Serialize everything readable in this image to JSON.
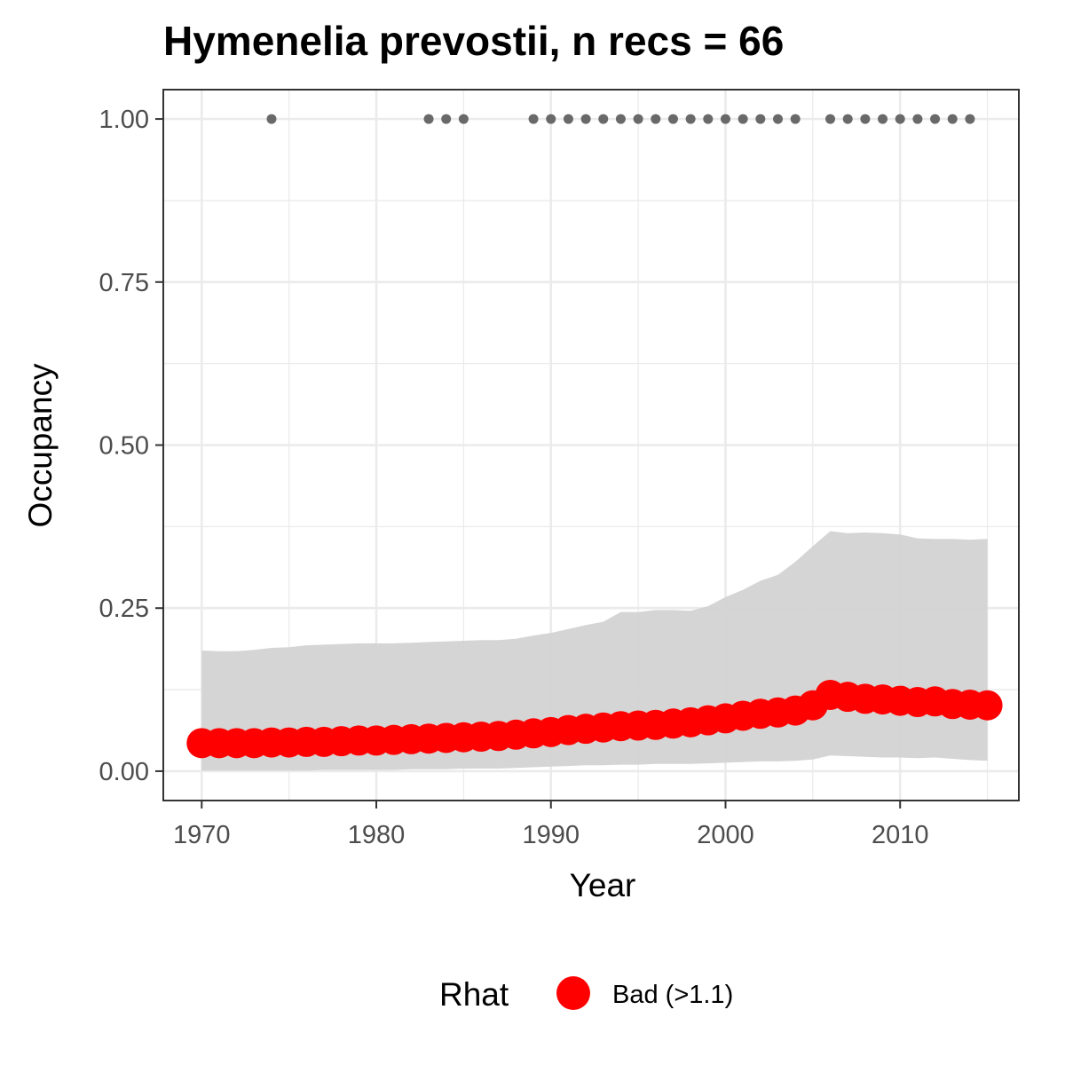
{
  "chart_data": {
    "type": "line",
    "title": "Hymenelia prevostii, n recs = 66",
    "xlabel": "Year",
    "ylabel": "Occupancy",
    "xlim": [
      1967.8,
      2016.8
    ],
    "ylim": [
      -0.045,
      1.045
    ],
    "x_ticks": [
      1970,
      1980,
      1990,
      2000,
      2010
    ],
    "x_tick_labels": [
      "1970",
      "1980",
      "1990",
      "2000",
      "2010"
    ],
    "y_ticks": [
      0,
      0.25,
      0.5,
      0.75,
      1
    ],
    "y_tick_labels": [
      "0.00",
      "0.25",
      "0.50",
      "0.75",
      "1.00"
    ],
    "grid": true,
    "colors": {
      "points": "#ff0000",
      "ribbon": "#d3d3d3",
      "records": "#696969",
      "grid": "#ebebeb",
      "border": "#333333"
    },
    "series": [
      {
        "type": "points",
        "x": [
          1970,
          1971,
          1972,
          1973,
          1974,
          1975,
          1976,
          1977,
          1978,
          1979,
          1980,
          1981,
          1982,
          1983,
          1984,
          1985,
          1986,
          1987,
          1988,
          1989,
          1990,
          1991,
          1992,
          1993,
          1994,
          1995,
          1996,
          1997,
          1998,
          1999,
          2000,
          2001,
          2002,
          2003,
          2004,
          2005,
          2006,
          2007,
          2008,
          2009,
          2010,
          2011,
          2012,
          2013,
          2014,
          2015
        ],
        "y": [
          0.043,
          0.043,
          0.043,
          0.043,
          0.044,
          0.044,
          0.045,
          0.045,
          0.046,
          0.047,
          0.047,
          0.048,
          0.049,
          0.05,
          0.051,
          0.052,
          0.053,
          0.054,
          0.056,
          0.058,
          0.06,
          0.063,
          0.065,
          0.067,
          0.069,
          0.07,
          0.071,
          0.073,
          0.075,
          0.078,
          0.081,
          0.085,
          0.088,
          0.09,
          0.093,
          0.101,
          0.117,
          0.114,
          0.111,
          0.11,
          0.108,
          0.106,
          0.107,
          0.103,
          0.102,
          0.101
        ]
      },
      {
        "type": "ribbon",
        "x": [
          1970,
          1971,
          1972,
          1973,
          1974,
          1975,
          1976,
          1977,
          1978,
          1979,
          1980,
          1981,
          1982,
          1983,
          1984,
          1985,
          1986,
          1987,
          1988,
          1989,
          1990,
          1991,
          1992,
          1993,
          1994,
          1995,
          1996,
          1997,
          1998,
          1999,
          2000,
          2001,
          2002,
          2003,
          2004,
          2005,
          2006,
          2007,
          2008,
          2009,
          2010,
          2011,
          2012,
          2013,
          2014,
          2015
        ],
        "lower": [
          0.001,
          0.001,
          0.001,
          0.001,
          0.001,
          0.001,
          0.001,
          0.002,
          0.002,
          0.002,
          0.002,
          0.002,
          0.003,
          0.003,
          0.003,
          0.004,
          0.004,
          0.004,
          0.005,
          0.006,
          0.007,
          0.008,
          0.009,
          0.009,
          0.01,
          0.01,
          0.011,
          0.011,
          0.011,
          0.012,
          0.013,
          0.014,
          0.015,
          0.015,
          0.016,
          0.018,
          0.024,
          0.023,
          0.022,
          0.021,
          0.021,
          0.02,
          0.021,
          0.019,
          0.017,
          0.016
        ],
        "upper": [
          0.185,
          0.184,
          0.184,
          0.186,
          0.189,
          0.19,
          0.193,
          0.194,
          0.195,
          0.196,
          0.196,
          0.196,
          0.197,
          0.198,
          0.199,
          0.2,
          0.201,
          0.201,
          0.203,
          0.208,
          0.212,
          0.218,
          0.224,
          0.229,
          0.244,
          0.244,
          0.247,
          0.247,
          0.246,
          0.253,
          0.267,
          0.278,
          0.292,
          0.301,
          0.321,
          0.345,
          0.368,
          0.365,
          0.366,
          0.365,
          0.363,
          0.357,
          0.356,
          0.356,
          0.355,
          0.356
        ]
      },
      {
        "type": "records",
        "x": [
          1974,
          1983,
          1984,
          1985,
          1989,
          1990,
          1991,
          1992,
          1993,
          1994,
          1995,
          1996,
          1997,
          1998,
          1999,
          2000,
          2001,
          2002,
          2003,
          2004,
          2006,
          2007,
          2008,
          2009,
          2010,
          2011,
          2012,
          2013,
          2014
        ],
        "y": [
          1,
          1,
          1,
          1,
          1,
          1,
          1,
          1,
          1,
          1,
          1,
          1,
          1,
          1,
          1,
          1,
          1,
          1,
          1,
          1,
          1,
          1,
          1,
          1,
          1,
          1,
          1,
          1,
          1
        ]
      }
    ],
    "legend": {
      "title": "Rhat",
      "placement": "bottom",
      "entries": [
        {
          "label": "Bad (>1.1)",
          "color": "#ff0000"
        }
      ]
    }
  }
}
